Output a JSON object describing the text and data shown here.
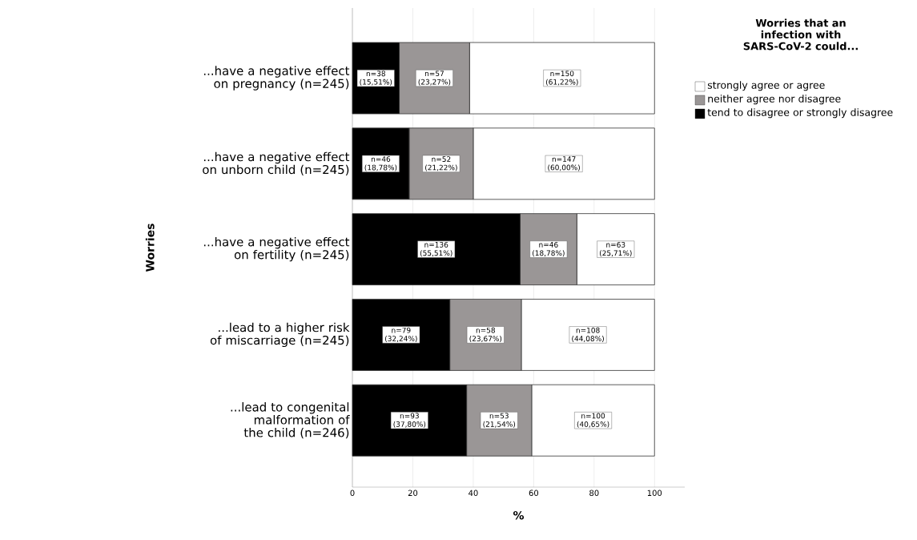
{
  "chart_data": {
    "type": "bar",
    "orientation": "horizontal",
    "stacked": true,
    "ylabel": "Worries",
    "xlabel": "%",
    "legend_title": "Worries that an infection with SARS-CoV-2 could...",
    "legend": "top right",
    "grid": "x",
    "categories": [
      "...have a negative effect on pregnancy (n=245)",
      "...have a negative effect on unborn child (n=245)",
      "...have a negative effect on fertility (n=245)",
      "...lead to a higher risk of miscarriage (n=245)",
      "...lead to congenital malformation of the child (n=246)"
    ],
    "series": [
      {
        "name": "tend to disagree or strongly disagree",
        "color": "#000000",
        "values": [
          15.51,
          18.78,
          55.51,
          32.24,
          37.8
        ],
        "value_labels": [
          "n=38 (15,51%)",
          "n=46 (18,78%)",
          "n=136 (55,51%)",
          "n=79 (32,24%)",
          "n=93 (37,80%)"
        ]
      },
      {
        "name": "neither agree nor disagree",
        "color": "#9a9696",
        "values": [
          23.27,
          21.22,
          18.78,
          23.67,
          21.54
        ],
        "value_labels": [
          "n=57 (23,27%)",
          "n=52 (21,22%)",
          "n=46 (18,78%)",
          "n=58 (23,67%)",
          "n=53 (21,54%)"
        ]
      },
      {
        "name": "strongly agree or agree",
        "color": "#ffffff",
        "values": [
          61.22,
          60.0,
          25.71,
          44.08,
          40.65
        ],
        "value_labels": [
          "n=150 (61,22%)",
          "n=147 (60,00%)",
          "n=63 (25,71%)",
          "n=108 (44,08%)",
          "n=100 (40,65%)"
        ]
      }
    ],
    "xlim": [
      0,
      110
    ],
    "xticks": [
      0,
      20,
      40,
      60,
      80,
      100
    ]
  }
}
